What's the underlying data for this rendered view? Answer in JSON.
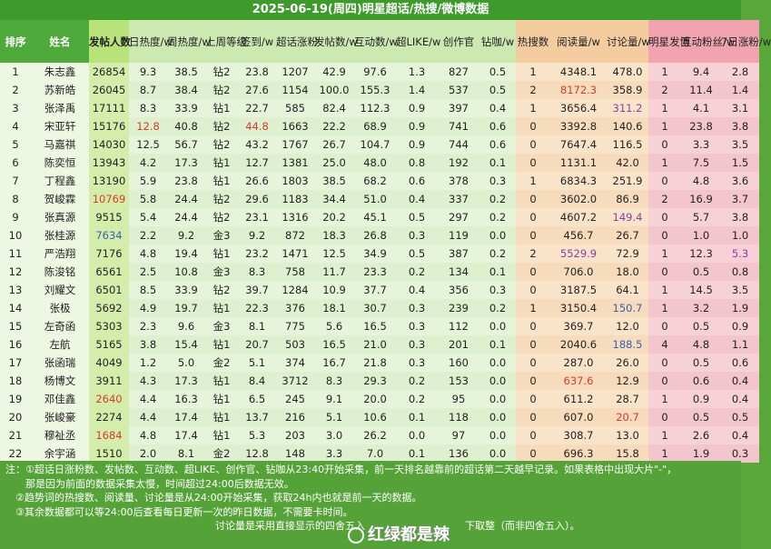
{
  "title": "2025-06-19(周四)明星超话/热搜/微博数据",
  "headers": [
    "排序",
    "姓名",
    "发帖人数",
    "日热度/w",
    "周热度/w",
    "上周等级",
    "签到/w",
    "超话涨粉",
    "发帖数/w",
    "互动数/w",
    "超LIKE/w",
    "创作官",
    "钻咖/w",
    "热搜数",
    "阅读量/w",
    "讨论量/w",
    "明星发博",
    "互动粉丝/w",
    "7日涨粉/w"
  ],
  "rows": [
    [
      "1",
      "朱志鑫",
      "26854",
      "9.3",
      "38.5",
      "钻2",
      "23.8",
      "1207",
      "42.9",
      "97.6",
      "1.3",
      "827",
      "0.5",
      "1",
      "4348.1",
      "478.0",
      "1",
      "9.4",
      "2.8"
    ],
    [
      "2",
      "苏新皓",
      "26045",
      "8.7",
      "38.4",
      "钻2",
      "27.6",
      "1154",
      "100.0",
      "155.3",
      "1.4",
      "537",
      "0.5",
      "2",
      "8172.3",
      "358.9",
      "2",
      "11.4",
      "1.4"
    ],
    [
      "3",
      "张泽禹",
      "17111",
      "8.3",
      "33.9",
      "钻1",
      "22.7",
      "585",
      "82.4",
      "112.3",
      "0.9",
      "397",
      "0.4",
      "1",
      "3656.4",
      "311.2",
      "1",
      "4.1",
      "3.1"
    ],
    [
      "4",
      "宋亚轩",
      "15176",
      "12.8",
      "40.8",
      "钻2",
      "44.8",
      "1663",
      "22.2",
      "68.9",
      "0.9",
      "741",
      "0.6",
      "0",
      "3392.8",
      "140.6",
      "1",
      "23.8",
      "3.8"
    ],
    [
      "5",
      "马嘉祺",
      "14030",
      "12.5",
      "56.7",
      "钻2",
      "43.2",
      "1767",
      "26.7",
      "104.7",
      "0.9",
      "744",
      "0.6",
      "0",
      "7647.4",
      "116.5",
      "0",
      "3.3",
      "3.5"
    ],
    [
      "6",
      "陈奕恒",
      "13943",
      "4.2",
      "17.3",
      "钻1",
      "12.7",
      "1381",
      "25.0",
      "48.0",
      "0.8",
      "192",
      "0.1",
      "0",
      "1131.1",
      "42.0",
      "1",
      "7.5",
      "1.5"
    ],
    [
      "7",
      "丁程鑫",
      "13190",
      "5.9",
      "23.8",
      "钻1",
      "26.6",
      "1803",
      "38.5",
      "68.2",
      "0.6",
      "378",
      "0.3",
      "1",
      "6834.3",
      "251.9",
      "0",
      "4.8",
      "3.6"
    ],
    [
      "8",
      "贺峻霖",
      "10769",
      "5.8",
      "24.4",
      "钻2",
      "29.6",
      "1183",
      "34.4",
      "51.0",
      "0.4",
      "337",
      "0.2",
      "0",
      "3602.0",
      "86.9",
      "2",
      "16.9",
      "3.7"
    ],
    [
      "9",
      "张真源",
      "9515",
      "5.4",
      "24.4",
      "钻2",
      "23.1",
      "1316",
      "20.2",
      "45.1",
      "0.5",
      "297",
      "0.2",
      "0",
      "4607.2",
      "149.4",
      "0",
      "5.7",
      "3.8"
    ],
    [
      "10",
      "张桂源",
      "7634",
      "2.2",
      "9.2",
      "金3",
      "9.2",
      "872",
      "18.3",
      "26.8",
      "0.3",
      "119",
      "0.0",
      "0",
      "456.7",
      "26.7",
      "0",
      "1.0",
      "1.0"
    ],
    [
      "11",
      "严浩翔",
      "7176",
      "4.8",
      "19.4",
      "钻1",
      "23.2",
      "1471",
      "12.5",
      "34.9",
      "0.5",
      "387",
      "0.2",
      "2",
      "5529.9",
      "72.9",
      "1",
      "12.3",
      "5.3"
    ],
    [
      "12",
      "陈浚铭",
      "6561",
      "2.5",
      "10.8",
      "金3",
      "8.3",
      "758",
      "11.7",
      "23.3",
      "0.2",
      "134",
      "0.1",
      "0",
      "706.0",
      "18.0",
      "0",
      "0.5",
      "0.8"
    ],
    [
      "13",
      "刘耀文",
      "6501",
      "8.5",
      "33.9",
      "钻2",
      "39.7",
      "1284",
      "10.9",
      "37.7",
      "0.4",
      "356",
      "0.3",
      "0",
      "3187.5",
      "64.1",
      "1",
      "14.5",
      "3.5"
    ],
    [
      "14",
      "张极",
      "5692",
      "4.9",
      "19.7",
      "钻1",
      "22.3",
      "376",
      "18.1",
      "30.7",
      "0.3",
      "239",
      "0.2",
      "1",
      "3150.4",
      "150.7",
      "1",
      "3.2",
      "1.9"
    ],
    [
      "15",
      "左奇函",
      "5303",
      "2.3",
      "9.6",
      "金3",
      "8.1",
      "775",
      "5.6",
      "16.5",
      "0.3",
      "112",
      "0.0",
      "0",
      "369.7",
      "12.0",
      "0",
      "0.5",
      "0.9"
    ],
    [
      "16",
      "左航",
      "5165",
      "3.8",
      "15.4",
      "钻1",
      "20.7",
      "503",
      "16.5",
      "21.0",
      "0.3",
      "201",
      "0.1",
      "0",
      "2040.6",
      "188.5",
      "4",
      "4.8",
      "1.1"
    ],
    [
      "17",
      "张函瑞",
      "4049",
      "1.2",
      "5.0",
      "金2",
      "5.1",
      "374",
      "16.7",
      "21.8",
      "0.3",
      "160",
      "0.0",
      "0",
      "287.0",
      "26.0",
      "0",
      "0.5",
      "0.6"
    ],
    [
      "18",
      "杨博文",
      "3911",
      "4.3",
      "17.3",
      "钻1",
      "8.4",
      "3712",
      "8.3",
      "29.3",
      "0.2",
      "153",
      "0.0",
      "0",
      "637.6",
      "12.9",
      "0",
      "0.6",
      "0.4"
    ],
    [
      "19",
      "邓佳鑫",
      "2640",
      "4.4",
      "16.3",
      "钻1",
      "6.5",
      "245",
      "9.1",
      "20.0",
      "0.2",
      "95",
      "0.0",
      "0",
      "611.2",
      "28.7",
      "1",
      "0.9",
      "0.4"
    ],
    [
      "20",
      "张峻豪",
      "2274",
      "4.4",
      "17.4",
      "钻1",
      "13.7",
      "216",
      "5.1",
      "10.6",
      "0.1",
      "118",
      "0.0",
      "0",
      "607.0",
      "20.7",
      "0",
      "0.5",
      "0.5"
    ],
    [
      "21",
      "穆祉丞",
      "1684",
      "4.8",
      "17.4",
      "钻1",
      "5.3",
      "203",
      "3.0",
      "26.2",
      "0.0",
      "97",
      "0.0",
      "0",
      "308.7",
      "13.0",
      "1",
      "2.6",
      "0.4"
    ],
    [
      "22",
      "余宇涵",
      "1510",
      "2.0",
      "8.1",
      "金2",
      "12.8",
      "148",
      "3.3",
      "7.0",
      "0.1",
      "136",
      "0.0",
      "0",
      "696.3",
      "15.8",
      "1",
      "1.9",
      "0.3"
    ]
  ],
  "highlights": {
    "3-15": "purple",
    "4-3": "red",
    "4-6": "red",
    "8-2": "red",
    "9-15": "purple",
    "10-2": "blue",
    "11-14": "purple",
    "11-18": "purple",
    "14-15": "blue",
    "16-15": "blue",
    "18-14": "red",
    "19-2": "red",
    "20-15": "red",
    "21-2": "red",
    "2-14": "red"
  },
  "notes": [
    "注：①超话日涨粉数、发帖数、互动数、超LIKE、创作官、钻咖从23:40开始采集，前一天排名越靠前的超话第二天越早记录。如果表格中出现大片\"-\"，",
    "　　那是因为前面的数据采集太慢，时间超过24:00后数据无效。",
    "　②趋势词的热搜数、阅读量、讨论量是从24:00开始采集，获取24h内也就是前一天的数据。",
    "　③其余数据都可以等24:00后查看每日更新一次的昨日数据，不需要卡时间。",
    "　　　　　　　　　　　　　　　　　　　　　讨论量是采用直接显示的四舍五入　　　　　　　　　　下取整（而非四舍五入）。"
  ],
  "watermark": "红绿都是辣"
}
